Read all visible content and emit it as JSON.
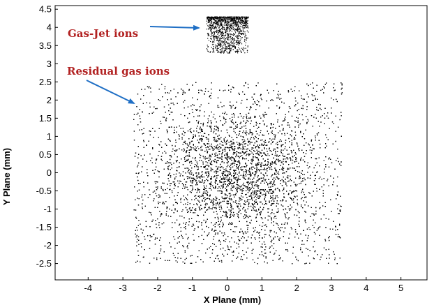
{
  "chart_data": {
    "type": "scatter",
    "title": "",
    "xlabel": "X Plane (mm)",
    "ylabel": "Y Plane (mm)",
    "xlim": [
      -4.95,
      5.75
    ],
    "ylim": [
      -2.95,
      4.6
    ],
    "xticks": [
      "-4",
      "-3",
      "-2",
      "-1",
      "0",
      "1",
      "2",
      "3",
      "4",
      "5"
    ],
    "yticks": [
      "-2.5",
      "-2",
      "-1.5",
      "-1",
      "-0.5",
      "0",
      "0.5",
      "1",
      "1.5",
      "2",
      "2.5",
      "3",
      "3.5",
      "4",
      "4.5"
    ],
    "grid": false,
    "marker_color": "#000000",
    "series": [
      {
        "name": "Gas-Jet ions",
        "x_range": [
          -0.6,
          0.6
        ],
        "y_range": [
          3.3,
          4.3
        ],
        "density_peak_y": 4.3,
        "approx_points": 1400
      },
      {
        "name": "Residual gas ions",
        "x_range": [
          -2.7,
          3.3
        ],
        "y_range": [
          -2.5,
          2.5
        ],
        "density_peak": [
          0.3,
          0.0
        ],
        "approx_points": 12000
      }
    ],
    "annotations": [
      {
        "text": "Gas-Jet ions",
        "color": "#b22222",
        "arrow_color": "#1f6fc5"
      },
      {
        "text": "Residual gas ions",
        "color": "#b22222",
        "arrow_color": "#1f6fc5"
      }
    ]
  }
}
